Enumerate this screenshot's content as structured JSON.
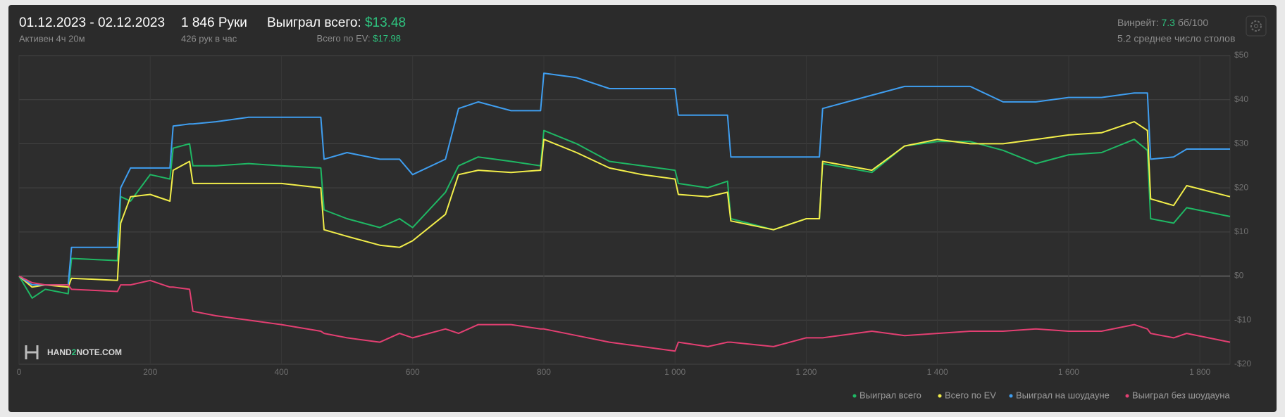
{
  "header": {
    "date_range": "01.12.2023 - 02.12.2023",
    "active": "Активен 4ч 20м",
    "hands": "1 846 Руки",
    "hands_per_hour": "426 рук в час",
    "won_label": "Выиграл всего:",
    "won_value": "$13.48",
    "ev_label": "Всего по EV:",
    "ev_value": "$17.98",
    "winrate_label": "Винрейт:",
    "winrate_value": "7.3",
    "winrate_unit": "бб/100",
    "tables": "5.2 среднее число столов"
  },
  "logo": {
    "part1": "HAND",
    "part2": "2",
    "part3": "NOTE.COM"
  },
  "chart_data": {
    "type": "line",
    "x": [
      0,
      20,
      40,
      75,
      80,
      150,
      155,
      170,
      200,
      230,
      235,
      260,
      265,
      300,
      350,
      400,
      460,
      465,
      500,
      550,
      580,
      600,
      650,
      670,
      700,
      750,
      795,
      800,
      850,
      900,
      950,
      1000,
      1005,
      1050,
      1080,
      1085,
      1150,
      1200,
      1220,
      1225,
      1300,
      1350,
      1400,
      1450,
      1500,
      1550,
      1600,
      1650,
      1700,
      1720,
      1725,
      1760,
      1780,
      1846
    ],
    "series": [
      {
        "name": "Выиграл всего",
        "color": "#1fb864",
        "values": [
          0,
          -5,
          -3,
          -4,
          4,
          3.5,
          18,
          17,
          23,
          22,
          29,
          30,
          25,
          25,
          25.5,
          25,
          24.5,
          15,
          13,
          11,
          13,
          11,
          19,
          25,
          27,
          26,
          25,
          33,
          30,
          26,
          25,
          24,
          21,
          20,
          21.5,
          13,
          10.5,
          13,
          13,
          25.5,
          23.5,
          29.5,
          30.5,
          30.5,
          28.5,
          25.5,
          27.5,
          28,
          31,
          28.5,
          13,
          12,
          15.5,
          13.5
        ]
      },
      {
        "name": "Всего по EV",
        "color": "#f2ee4a",
        "values": [
          0,
          -2.5,
          -2,
          -2.5,
          -0.5,
          -1,
          12,
          18,
          18.5,
          17,
          24,
          26,
          21,
          21,
          21,
          21,
          20,
          10.5,
          9,
          7,
          6.5,
          8,
          14,
          23,
          24,
          23.5,
          24,
          31,
          28,
          24.5,
          23,
          22,
          18.5,
          18,
          19,
          12.5,
          10.5,
          13,
          13,
          26,
          24,
          29.5,
          31,
          30,
          30,
          31,
          32,
          32.5,
          35,
          33,
          17.5,
          16,
          20.5,
          18
        ]
      },
      {
        "name": "Выиграл на шоудауне",
        "color": "#3f9ef0",
        "values": [
          0,
          -2,
          -2,
          -2,
          6.5,
          6.5,
          20,
          24.5,
          24.5,
          24.5,
          34,
          34.5,
          34.5,
          35,
          36,
          36,
          36,
          26.5,
          28,
          26.5,
          26.5,
          23,
          26.5,
          38,
          39.5,
          37.5,
          37.5,
          46,
          45,
          42.5,
          42.5,
          42.5,
          36.5,
          36.5,
          36.5,
          27,
          27,
          27,
          27,
          38,
          41,
          43,
          43,
          43,
          39.5,
          39.5,
          40.5,
          40.5,
          41.5,
          41.5,
          26.5,
          27,
          28.8,
          28.8
        ]
      },
      {
        "name": "Выиграл без шоудауна",
        "color": "#e33f72",
        "values": [
          0,
          -1.5,
          -2,
          -2,
          -3,
          -3.5,
          -2,
          -2,
          -1,
          -2.5,
          -2.5,
          -3,
          -8,
          -9,
          -10,
          -11,
          -12.5,
          -13,
          -14,
          -15,
          -13,
          -14,
          -12,
          -13,
          -11,
          -11,
          -12,
          -12,
          -13.5,
          -15,
          -16,
          -17,
          -15,
          -16,
          -15,
          -15,
          -16,
          -14,
          -14,
          -14,
          -12.5,
          -13.5,
          -13,
          -12.5,
          -12.5,
          -12,
          -12.5,
          -12.5,
          -11,
          -12,
          -13,
          -14,
          -13,
          -15
        ]
      }
    ],
    "xlim": [
      0,
      1846
    ],
    "xticks": [
      0,
      200,
      400,
      600,
      800,
      {
        "value": 1000,
        "label": "1 000"
      },
      {
        "value": 1200,
        "label": "1 200"
      },
      {
        "value": 1400,
        "label": "1 400"
      },
      {
        "value": 1600,
        "label": "1 600"
      },
      {
        "value": 1800,
        "label": "1 800"
      }
    ],
    "ylim": [
      -20,
      50
    ],
    "yticks": [
      {
        "value": 50,
        "label": "$50"
      },
      {
        "value": 40,
        "label": "$40"
      },
      {
        "value": 30,
        "label": "$30"
      },
      {
        "value": 20,
        "label": "$20"
      },
      {
        "value": 10,
        "label": "$10"
      },
      {
        "value": 0,
        "label": "$0"
      },
      {
        "value": -10,
        "label": "-$10"
      },
      {
        "value": -20,
        "label": "-$20"
      }
    ],
    "grid": true,
    "legend": "bottom-right"
  }
}
